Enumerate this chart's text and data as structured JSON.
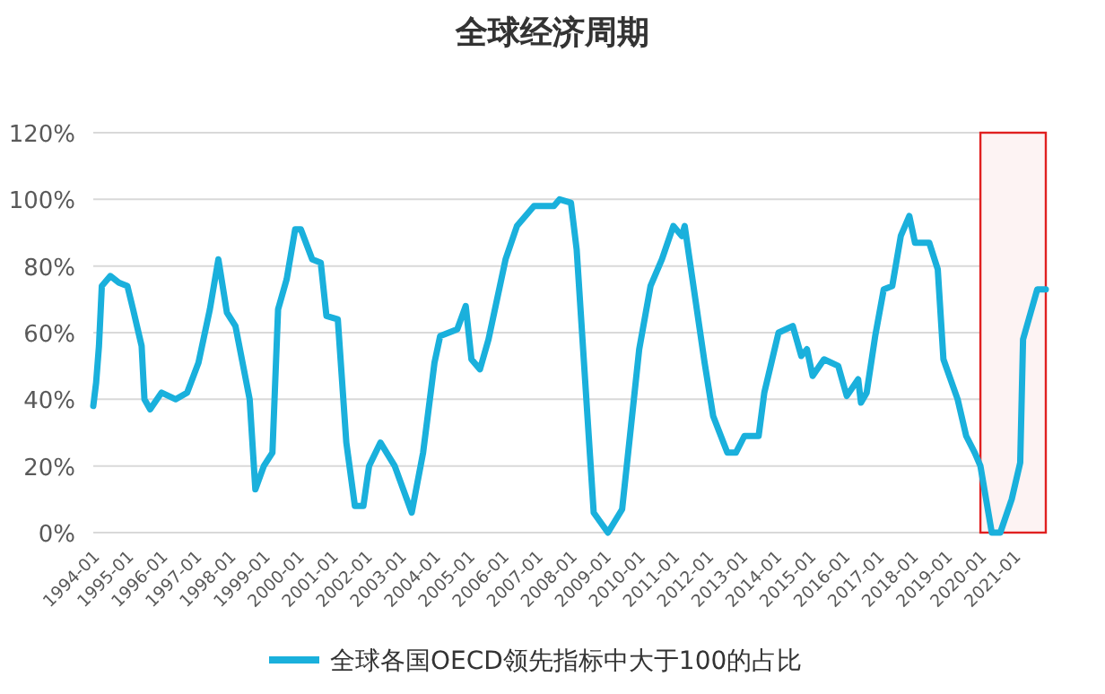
{
  "chart_data": {
    "type": "line",
    "title": "全球经济周期",
    "grid": "y",
    "legend": "bottom",
    "marker": "none",
    "line_style": "solid",
    "xlim": [
      "1994-01",
      "2021-12"
    ],
    "xticks": [
      "1994-01",
      "1995-01",
      "1996-01",
      "1997-01",
      "1998-01",
      "1999-01",
      "2000-01",
      "2001-01",
      "2002-01",
      "2003-01",
      "2004-01",
      "2005-01",
      "2006-01",
      "2007-01",
      "2008-01",
      "2009-01",
      "2010-01",
      "2011-01",
      "2012-01",
      "2013-01",
      "2014-01",
      "2015-01",
      "2016-01",
      "2017-01",
      "2018-01",
      "2019-01",
      "2020-01",
      "2021-01"
    ],
    "ylim": [
      0,
      120
    ],
    "yticks": [
      {
        "value": 0,
        "label": "0%"
      },
      {
        "value": 20,
        "label": "20%"
      },
      {
        "value": 40,
        "label": "40%"
      },
      {
        "value": 60,
        "label": "60%"
      },
      {
        "value": 80,
        "label": "80%"
      },
      {
        "value": 100,
        "label": "100%"
      },
      {
        "value": 120,
        "label": "120%"
      }
    ],
    "bands": [
      {
        "axis": "x",
        "from": "2020-01",
        "to": "2021-12",
        "color": "#e02020"
      }
    ],
    "series": [
      {
        "name": "全球各国OECD领先指标中大于100的占比",
        "color": "#1ab0dc",
        "x": [
          "1994-01",
          "1994-02",
          "1994-03",
          "1994-04",
          "1994-07",
          "1994-10",
          "1995-01",
          "1995-03",
          "1995-06",
          "1995-07",
          "1995-09",
          "1996-01",
          "1996-06",
          "1996-10",
          "1997-02",
          "1997-06",
          "1997-09",
          "1997-12",
          "1998-03",
          "1998-08",
          "1998-10",
          "1999-01",
          "1999-04",
          "1999-06",
          "1999-09",
          "1999-12",
          "2000-02",
          "2000-06",
          "2000-09",
          "2000-11",
          "2001-03",
          "2001-06",
          "2001-09",
          "2001-12",
          "2002-02",
          "2002-06",
          "2002-11",
          "2003-05",
          "2003-09",
          "2004-01",
          "2004-03",
          "2004-09",
          "2004-12",
          "2005-02",
          "2005-05",
          "2005-08",
          "2006-02",
          "2006-06",
          "2006-12",
          "2007-07",
          "2007-09",
          "2008-01",
          "2008-03",
          "2008-09",
          "2009-02",
          "2009-07",
          "2010-01",
          "2010-05",
          "2010-09",
          "2011-01",
          "2011-04",
          "2011-05",
          "2011-12",
          "2012-03",
          "2012-08",
          "2012-11",
          "2013-02",
          "2013-07",
          "2013-09",
          "2014-02",
          "2014-07",
          "2014-10",
          "2014-12",
          "2015-02",
          "2015-06",
          "2015-11",
          "2016-02",
          "2016-06",
          "2016-07",
          "2016-09",
          "2016-12",
          "2017-03",
          "2017-06",
          "2017-09",
          "2017-12",
          "2018-02",
          "2018-07",
          "2018-10",
          "2018-12",
          "2019-05",
          "2019-08",
          "2019-11",
          "2020-01",
          "2020-05",
          "2020-08",
          "2020-12",
          "2021-03",
          "2021-04",
          "2021-06",
          "2021-09",
          "2021-12"
        ],
        "values": [
          38,
          45,
          56,
          74,
          77,
          75,
          74,
          67,
          56,
          40,
          37,
          42,
          40,
          42,
          51,
          67,
          82,
          66,
          62,
          40,
          13,
          20,
          24,
          67,
          76,
          91,
          91,
          82,
          81,
          65,
          64,
          27,
          8,
          8,
          20,
          27,
          20,
          6,
          24,
          51,
          59,
          61,
          68,
          52,
          49,
          58,
          82,
          92,
          98,
          98,
          100,
          99,
          85,
          6,
          0,
          7,
          55,
          74,
          82,
          92,
          89,
          92,
          51,
          35,
          24,
          24,
          29,
          29,
          42,
          60,
          62,
          53,
          55,
          47,
          52,
          50,
          41,
          46,
          39,
          42,
          59,
          73,
          74,
          89,
          95,
          87,
          87,
          79,
          52,
          40,
          29,
          24,
          20,
          0,
          0,
          10,
          21,
          58,
          64,
          73,
          73
        ]
      }
    ]
  }
}
